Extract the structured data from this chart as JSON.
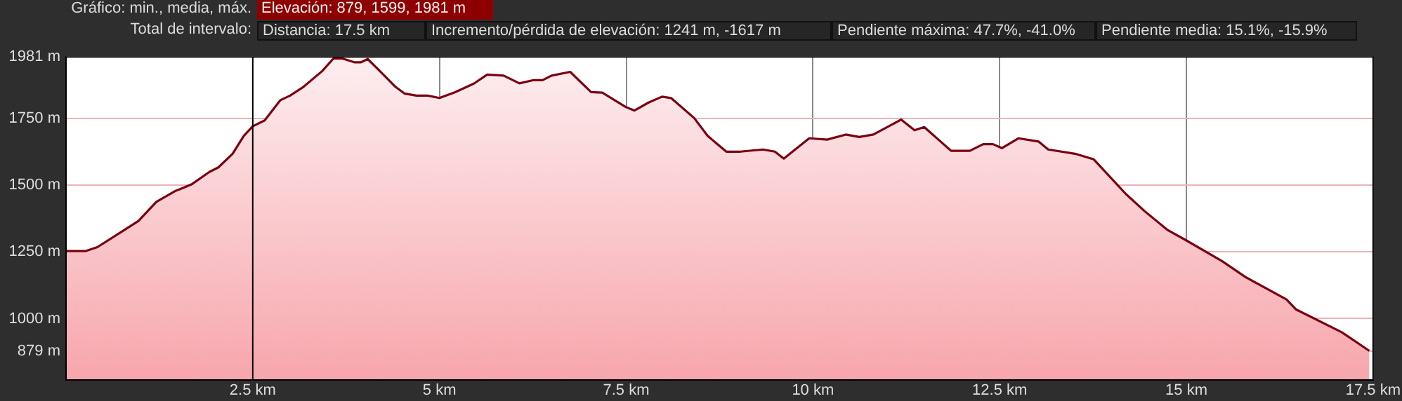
{
  "chart_data": {
    "type": "area",
    "annotations": [
      "Gráfico: min., media, máx.",
      "Elevación: 879, 1599, 1981 m",
      "Total de intervalo:",
      "Distancia: 17.5 km",
      "Incremento/pérdida de elevación: 1241 m, -1617 m",
      "Pendiente máxima: 47.7%, -41.0%",
      "Pendiente media: 15.1%, -15.9%"
    ],
    "series": [
      {
        "color": "#7a0010",
        "x": [
          0,
          0.26,
          0.42,
          0.78,
          0.97,
          1.21,
          1.46,
          1.68,
          1.92,
          2.04,
          2.23,
          2.38,
          2.5,
          2.66,
          2.87,
          3.0,
          3.18,
          3.43,
          3.58,
          3.7,
          3.86,
          3.95,
          4.04,
          4.23,
          4.41,
          4.53,
          4.69,
          4.84,
          5.0,
          5.21,
          5.46,
          5.64,
          5.86,
          6.07,
          6.26,
          6.38,
          6.5,
          6.75,
          7.03,
          7.18,
          7.49,
          7.61,
          7.8,
          7.98,
          8.1,
          8.41,
          8.59,
          8.84,
          9.03,
          9.33,
          9.49,
          9.61,
          9.95,
          10.19,
          10.44,
          10.62,
          10.81,
          11.18,
          11.36,
          11.49,
          11.85,
          12.1,
          12.28,
          12.41,
          12.53,
          12.75,
          13.02,
          13.15,
          13.51,
          13.76,
          14.19,
          14.44,
          14.75,
          15.0,
          15.48,
          15.79,
          16.34,
          16.47,
          17.08,
          17.45
        ],
        "values": [
          1253,
          1253,
          1268,
          1332,
          1366,
          1438,
          1478,
          1503,
          1550,
          1567,
          1618,
          1685,
          1721,
          1743,
          1819,
          1836,
          1869,
          1928,
          1975,
          1975,
          1961,
          1961,
          1973,
          1920,
          1869,
          1844,
          1836,
          1836,
          1827,
          1849,
          1881,
          1915,
          1911,
          1882,
          1894,
          1894,
          1911,
          1925,
          1849,
          1847,
          1794,
          1780,
          1810,
          1832,
          1827,
          1752,
          1685,
          1626,
          1626,
          1634,
          1626,
          1600,
          1676,
          1671,
          1690,
          1681,
          1690,
          1746,
          1706,
          1718,
          1629,
          1629,
          1654,
          1654,
          1639,
          1676,
          1664,
          1634,
          1618,
          1597,
          1467,
          1403,
          1332,
          1293,
          1215,
          1156,
          1072,
          1034,
          949,
          879
        ]
      }
    ],
    "xlim": [
      0,
      17.5
    ],
    "xticks": [
      {
        "value": 2.5,
        "label": "2.5 km"
      },
      {
        "value": 5,
        "label": "5 km"
      },
      {
        "value": 7.5,
        "label": "7.5 km"
      },
      {
        "value": 10,
        "label": "10 km"
      },
      {
        "value": 12.5,
        "label": "12.5 km"
      },
      {
        "value": 15,
        "label": "15 km"
      },
      {
        "value": 17.5,
        "label": "17.5 km"
      }
    ],
    "ylim": [
      770,
      1981
    ],
    "yticks": [
      {
        "value": 879,
        "label": "879 m"
      },
      {
        "value": 1000,
        "label": "1000 m"
      },
      {
        "value": 1250,
        "label": "1250 m"
      },
      {
        "value": 1500,
        "label": "1500 m"
      },
      {
        "value": 1750,
        "label": "1750 m"
      },
      {
        "value": 1981,
        "label": "1981 m"
      }
    ],
    "grid": true,
    "legend": false,
    "marker": "none",
    "line_style": "solid",
    "ref_lines": [
      {
        "axis": "x",
        "value": 2.5,
        "color": "#000000",
        "line_style": "solid"
      }
    ]
  }
}
